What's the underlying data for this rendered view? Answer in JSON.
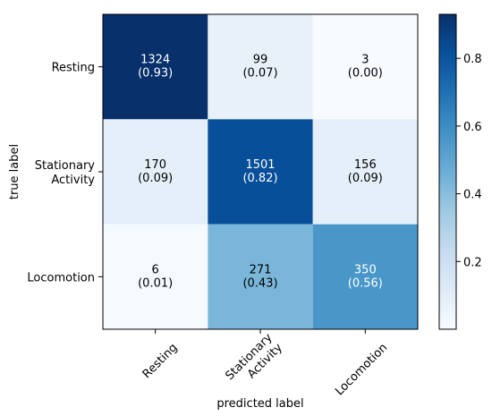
{
  "chart_data": {
    "type": "heatmap",
    "title": "",
    "xlabel": "predicted label",
    "ylabel": "true label",
    "x_categories": [
      [
        "Resting"
      ],
      [
        "Stationary",
        "Activity"
      ],
      [
        "Locomotion"
      ]
    ],
    "y_categories": [
      [
        "Resting"
      ],
      [
        "Stationary",
        "Activity"
      ],
      [
        "Locomotion"
      ]
    ],
    "counts": [
      [
        1324,
        99,
        3
      ],
      [
        170,
        1501,
        156
      ],
      [
        6,
        271,
        350
      ]
    ],
    "normalized": [
      [
        0.93,
        0.07,
        0.0
      ],
      [
        0.09,
        0.82,
        0.09
      ],
      [
        0.01,
        0.43,
        0.56
      ]
    ],
    "cell_labels": [
      [
        [
          "1324",
          "(0.93)"
        ],
        [
          "99",
          "(0.07)"
        ],
        [
          "3",
          "(0.00)"
        ]
      ],
      [
        [
          "170",
          "(0.09)"
        ],
        [
          "1501",
          "(0.82)"
        ],
        [
          "156",
          "(0.09)"
        ]
      ],
      [
        [
          "6",
          "(0.01)"
        ],
        [
          "271",
          "(0.43)"
        ],
        [
          "350",
          "(0.56)"
        ]
      ]
    ],
    "colormap": "Blues",
    "colorbar": {
      "range": [
        0.0,
        0.93
      ],
      "ticks": [
        0.2,
        0.4,
        0.6,
        0.8
      ],
      "tick_labels": [
        "0.2",
        "0.4",
        "0.6",
        "0.8"
      ]
    },
    "colors": {
      "low": "#f7fbff",
      "high": "#08306b",
      "text_dark": "#000000",
      "text_light": "#ffffff"
    },
    "grid": false
  }
}
